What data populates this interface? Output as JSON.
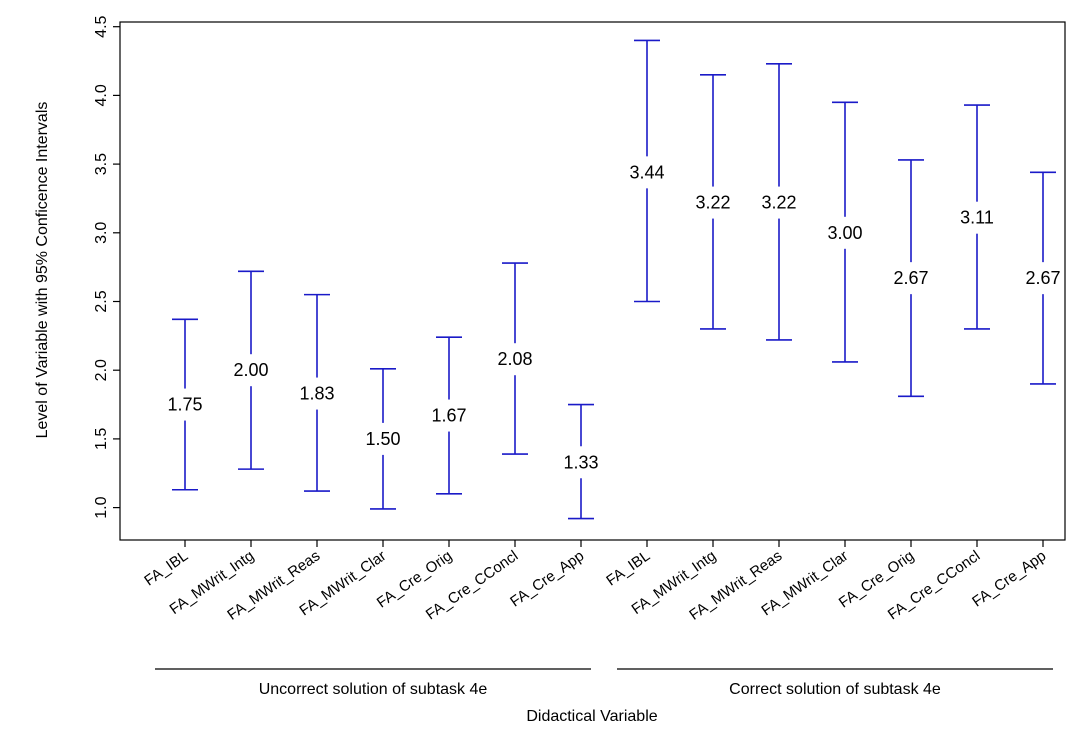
{
  "chart_data": {
    "type": "errorbar",
    "ylabel": "Level of Variable with 95% Conficence Intervals",
    "xlabel": "Didactical Variable",
    "ylim": [
      0.8,
      4.5
    ],
    "yticks": [
      "1.0",
      "1.5",
      "2.0",
      "2.5",
      "3.0",
      "3.5",
      "4.0",
      "4.5"
    ],
    "grid": false,
    "colors": {
      "errorbar": "#1a1ac8"
    },
    "categories": [
      "FA_IBL",
      "FA_MWrit_Intg",
      "FA_MWrit_Reas",
      "FA_MWrit_Clar",
      "FA_Cre_Orig",
      "FA_Cre_CConcl",
      "FA_Cre_App",
      "FA_IBL",
      "FA_MWrit_Intg",
      "FA_MWrit_Reas",
      "FA_MWrit_Clar",
      "FA_Cre_Orig",
      "FA_Cre_CConcl",
      "FA_Cre_App"
    ],
    "groups": [
      {
        "label": "Uncorrect solution of  subtask 4e",
        "start": 0,
        "end": 6
      },
      {
        "label": "Correct solution of  subtask 4e",
        "start": 7,
        "end": 13
      }
    ],
    "series": [
      {
        "means": [
          1.75,
          2.0,
          1.83,
          1.5,
          1.67,
          2.08,
          1.33,
          3.44,
          3.22,
          3.22,
          3.0,
          2.67,
          3.11,
          2.67
        ],
        "mean_labels": [
          "1.75",
          "2.00",
          "1.83",
          "1.50",
          "1.67",
          "2.08",
          "1.33",
          "3.44",
          "3.22",
          "3.22",
          "3.00",
          "2.67",
          "3.11",
          "2.67"
        ],
        "lower": [
          1.13,
          1.28,
          1.12,
          0.99,
          1.1,
          1.39,
          0.92,
          2.5,
          2.3,
          2.22,
          2.06,
          1.81,
          2.3,
          1.9
        ],
        "upper": [
          2.37,
          2.72,
          2.55,
          2.01,
          2.24,
          2.78,
          1.75,
          4.4,
          4.15,
          4.23,
          3.95,
          3.53,
          3.93,
          3.44
        ]
      }
    ]
  }
}
